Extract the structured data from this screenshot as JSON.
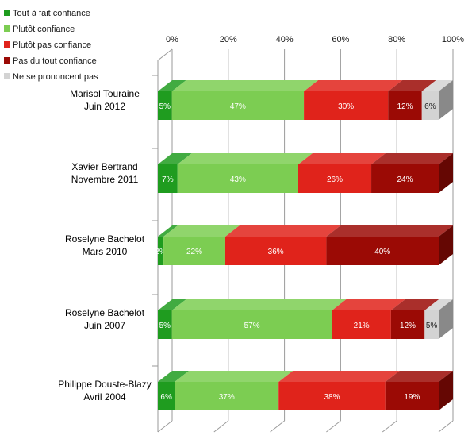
{
  "chart_data": {
    "type": "bar",
    "orientation": "horizontal",
    "stacked": true,
    "three_d": true,
    "legend_position": "top-left",
    "xlim": [
      0,
      100
    ],
    "x_ticks": [
      "0%",
      "20%",
      "40%",
      "60%",
      "80%",
      "100%"
    ],
    "categories": [
      [
        "Marisol Touraine",
        "Juin 2012"
      ],
      [
        "Xavier Bertrand",
        "Novembre 2011"
      ],
      [
        "Roselyne Bachelot",
        "Mars 2010"
      ],
      [
        "Roselyne Bachelot",
        "Juin 2007"
      ],
      [
        "Philippe Douste-Blazy",
        "Avril 2004"
      ]
    ],
    "series": [
      {
        "name": "Tout à fait confiance",
        "color": "#1f9c1f",
        "values": [
          5,
          7,
          2,
          5,
          6
        ],
        "labels": [
          "5%",
          "7%",
          "2%",
          "5%",
          "6%"
        ]
      },
      {
        "name": "Plutôt confiance",
        "color": "#7ccd52",
        "values": [
          47,
          43,
          22,
          57,
          37
        ],
        "labels": [
          "47%",
          "43%",
          "22%",
          "57%",
          "37%"
        ]
      },
      {
        "name": "Plutôt pas confiance",
        "color": "#e0231b",
        "values": [
          30,
          26,
          36,
          21,
          38
        ],
        "labels": [
          "30%",
          "26%",
          "36%",
          "21%",
          "38%"
        ]
      },
      {
        "name": "Pas du tout confiance",
        "color": "#9b0a05",
        "values": [
          12,
          24,
          40,
          12,
          19
        ],
        "labels": [
          "12%",
          "24%",
          "40%",
          "12%",
          "19%"
        ]
      },
      {
        "name": "Ne se prononcent pas",
        "color": "#d3d3d3",
        "values": [
          6,
          0,
          0,
          5,
          0
        ],
        "labels": [
          "6%",
          "",
          "",
          "5%",
          ""
        ]
      }
    ]
  }
}
